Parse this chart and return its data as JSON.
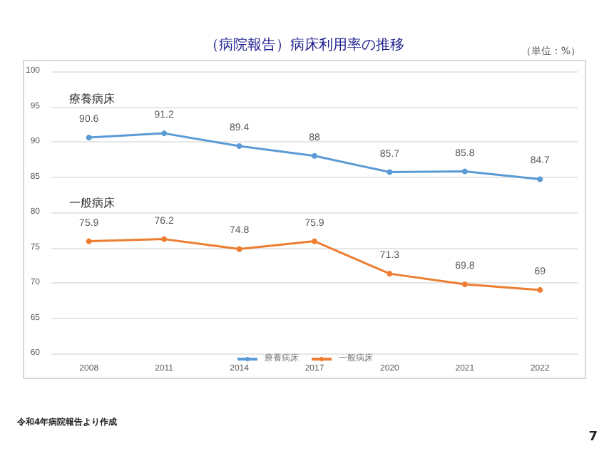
{
  "chart_data": {
    "type": "line",
    "title": "（病院報告）病床利用率の推移",
    "categories": [
      "2008",
      "2011",
      "2014",
      "2017",
      "2020",
      "2021",
      "2022"
    ],
    "series": [
      {
        "name": "療養病床",
        "color": "#5b9bd5",
        "values": [
          90.6,
          91.2,
          89.4,
          88,
          85.7,
          85.8,
          84.7
        ]
      },
      {
        "name": "一般病床",
        "color": "#ed7d31",
        "values": [
          75.9,
          76.2,
          74.8,
          75.9,
          71.3,
          69.8,
          69
        ]
      }
    ],
    "ylim": [
      60,
      100
    ],
    "yticks": [
      60,
      65,
      70,
      75,
      80,
      85,
      90,
      95,
      100
    ],
    "grid": "y",
    "legend": "bottom",
    "data_labels": true,
    "marker": "circle",
    "line_style": "solid",
    "annotations": [
      "（単位：%）",
      "令和4年病院報告より作成",
      "7"
    ]
  }
}
